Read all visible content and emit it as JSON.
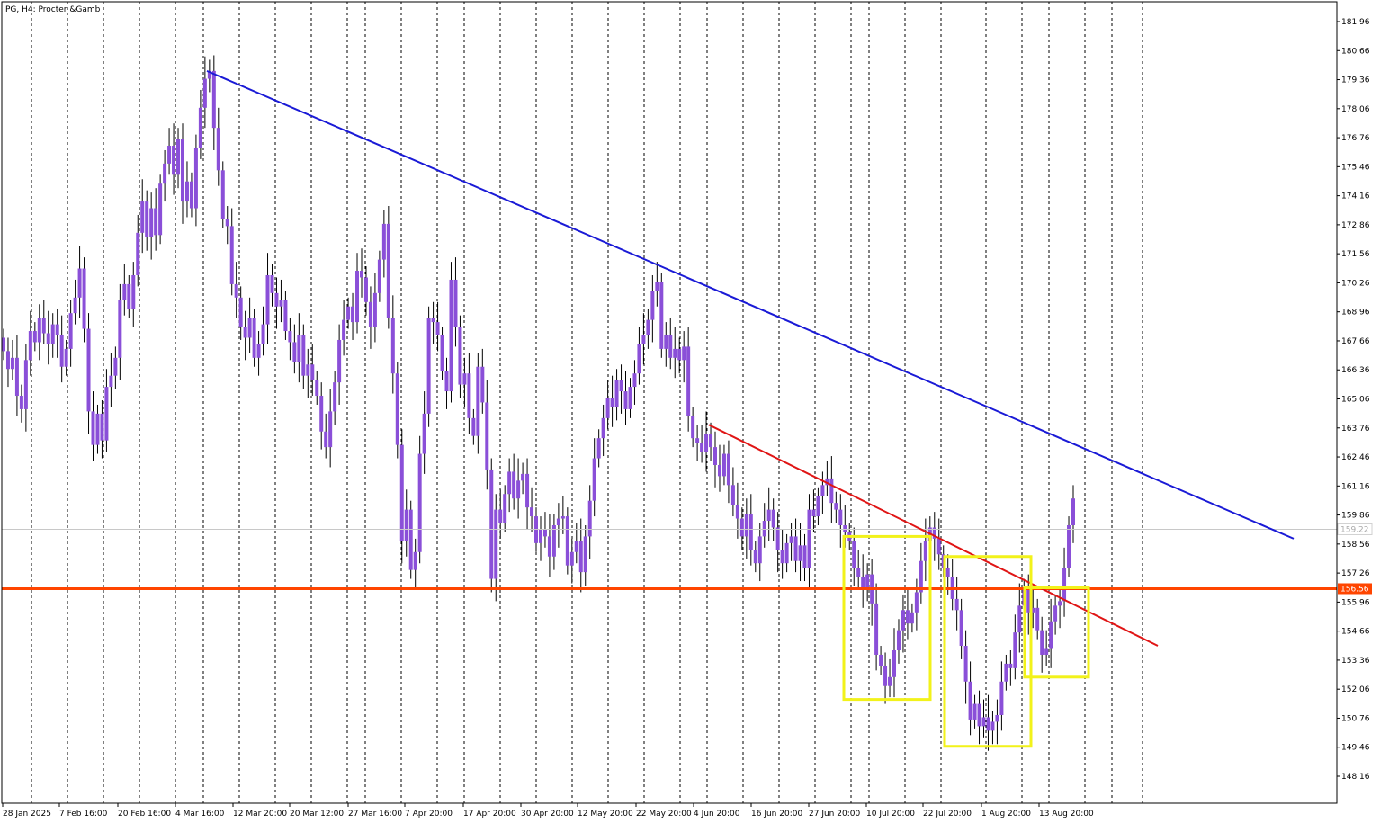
{
  "window": {
    "title": "PG, H4:  Procter &Gamb"
  },
  "colors": {
    "background": "#ffffff",
    "frame": "#000000",
    "grid": "#000000",
    "candle": "#8a4fd8",
    "wick": "#000000",
    "trend_upper": "#1a1ad6",
    "trend_lower": "#e01515",
    "support": "#ff4500",
    "box": "#f2f21a",
    "current_price_line": "#c8c8c8",
    "current_label_bg": "#ffffff",
    "current_label_text": "#aaaaaa",
    "support_label_bg": "#ff4500",
    "support_label_text": "#ffffff"
  },
  "chart_data": {
    "type": "candlestick",
    "symbol": "PG",
    "timeframe": "H4",
    "name": "Procter &Gamb",
    "x_labels": [
      "28 Jan 2025",
      "7 Feb 16:00",
      "20 Feb 16:00",
      "4 Mar 16:00",
      "12 Mar 20:00",
      "20 Mar 12:00",
      "27 Mar 16:00",
      "7 Apr 20:00",
      "17 Apr 20:00",
      "30 Apr 20:00",
      "12 May 20:00",
      "22 May 20:00",
      "4 Jun 20:00",
      "16 Jun 20:00",
      "27 Jun 20:00",
      "10 Jul 20:00",
      "22 Jul 20:00",
      "1 Aug 20:00",
      "13 Aug 20:00"
    ],
    "y_ticks": [
      "181.96",
      "180.66",
      "179.36",
      "178.06",
      "176.76",
      "175.46",
      "174.16",
      "172.86",
      "171.56",
      "170.26",
      "168.96",
      "167.66",
      "166.36",
      "165.06",
      "163.76",
      "162.46",
      "161.16",
      "159.86",
      "158.56",
      "157.26",
      "155.96",
      "154.66",
      "153.36",
      "152.06",
      "150.76",
      "149.46",
      "148.16"
    ],
    "y_range": [
      147.1,
      182.8
    ],
    "grid": "vertical-dashed",
    "current_price": "159.22",
    "support_level": "156.56",
    "trendlines": [
      {
        "name": "upper-blue",
        "from": [
          "4 Mar 16:00",
          179.75
        ],
        "to": [
          "after 13 Aug 20:00",
          158.8
        ]
      },
      {
        "name": "lower-red",
        "from": [
          "4 Jun 20:00",
          163.9
        ],
        "to": [
          "after 13 Aug 20:00",
          154.0
        ]
      }
    ],
    "boxes": [
      {
        "from": "~30 Jun",
        "to": "~17 Jul",
        "high": 158.9,
        "low": 151.6
      },
      {
        "from": "~21 Jul",
        "to": "~4 Aug",
        "high": 158.0,
        "low": 149.5
      },
      {
        "from": "~4 Aug",
        "to": "~14 Aug",
        "high": 156.6,
        "low": 152.6
      }
    ],
    "closes": [
      167.2,
      166.4,
      166.9,
      165.2,
      164.6,
      166.8,
      168.1,
      167.6,
      168.7,
      168.0,
      167.5,
      168.4,
      167.9,
      166.5,
      167.3,
      168.9,
      169.6,
      170.9,
      168.2,
      164.5,
      163.0,
      164.4,
      163.2,
      165.6,
      166.1,
      166.9,
      169.5,
      170.2,
      169.1,
      170.6,
      172.5,
      173.9,
      172.3,
      173.6,
      172.4,
      174.7,
      175.6,
      176.4,
      175.1,
      176.7,
      173.9,
      174.8,
      173.6,
      176.3,
      178.1,
      179.4,
      179.75,
      177.2,
      175.3,
      173.1,
      172.8,
      170.2,
      169.6,
      168.3,
      167.8,
      168.7,
      166.9,
      167.5,
      168.4,
      170.6,
      169.8,
      169.2,
      169.5,
      168.1,
      167.6,
      166.7,
      167.9,
      166.1,
      166.6,
      165.9,
      165.2,
      163.6,
      162.9,
      164.5,
      165.8,
      167.7,
      168.6,
      169.2,
      168.5,
      170.8,
      170.5,
      169.4,
      168.3,
      169.8,
      171.3,
      172.9,
      168.7,
      166.2,
      163.0,
      158.7,
      160.1,
      157.4,
      158.2,
      162.6,
      164.4,
      168.7,
      168.5,
      167.9,
      166.3,
      165.4,
      170.4,
      168.3,
      165.7,
      166.2,
      164.2,
      163.4,
      166.5,
      164.9,
      161.9,
      157.0,
      160.1,
      159.5,
      160.8,
      161.8,
      160.6,
      161.4,
      161.7,
      160.2,
      159.8,
      158.6,
      159.2,
      158.9,
      158.0,
      159.4,
      159.7,
      159.8,
      157.6,
      158.2,
      158.7,
      157.3,
      158.9,
      160.5,
      162.4,
      163.3,
      164.2,
      165.1,
      164.7,
      165.9,
      165.4,
      164.6,
      165.6,
      166.2,
      167.5,
      167.9,
      168.6,
      169.9,
      170.3,
      167.3,
      167.9,
      166.9,
      167.3,
      166.8,
      167.4,
      164.3,
      163.3,
      163.1,
      162.7,
      163.5,
      162.9,
      162.1,
      161.6,
      162.6,
      161.2,
      160.3,
      159.7,
      158.9,
      159.9,
      158.3,
      157.7,
      158.9,
      159.6,
      160.1,
      159.3,
      158.3,
      157.7,
      158.6,
      158.9,
      157.8,
      158.5,
      157.5,
      160.1,
      159.8,
      160.7,
      161.2,
      161.5,
      160.4,
      160.1,
      159.4,
      159.1,
      158.7,
      157.5,
      157.1,
      156.6,
      157.2,
      155.9,
      153.6,
      153.1,
      152.2,
      152.6,
      153.8,
      154.7,
      155.6,
      155.0,
      155.5,
      156.4,
      157.8,
      158.7,
      159.3,
      158.8,
      158.1,
      157.5,
      157.1,
      156.1,
      155.6,
      154.0,
      152.4,
      150.7,
      151.4,
      150.4,
      150.8,
      150.2,
      150.6,
      150.9,
      152.4,
      153.2,
      153.0,
      154.6,
      155.8,
      156.5,
      155.5,
      155.7,
      154.7,
      153.6,
      153.9,
      155.1,
      155.8,
      156.0,
      157.5,
      159.4,
      160.6
    ]
  }
}
